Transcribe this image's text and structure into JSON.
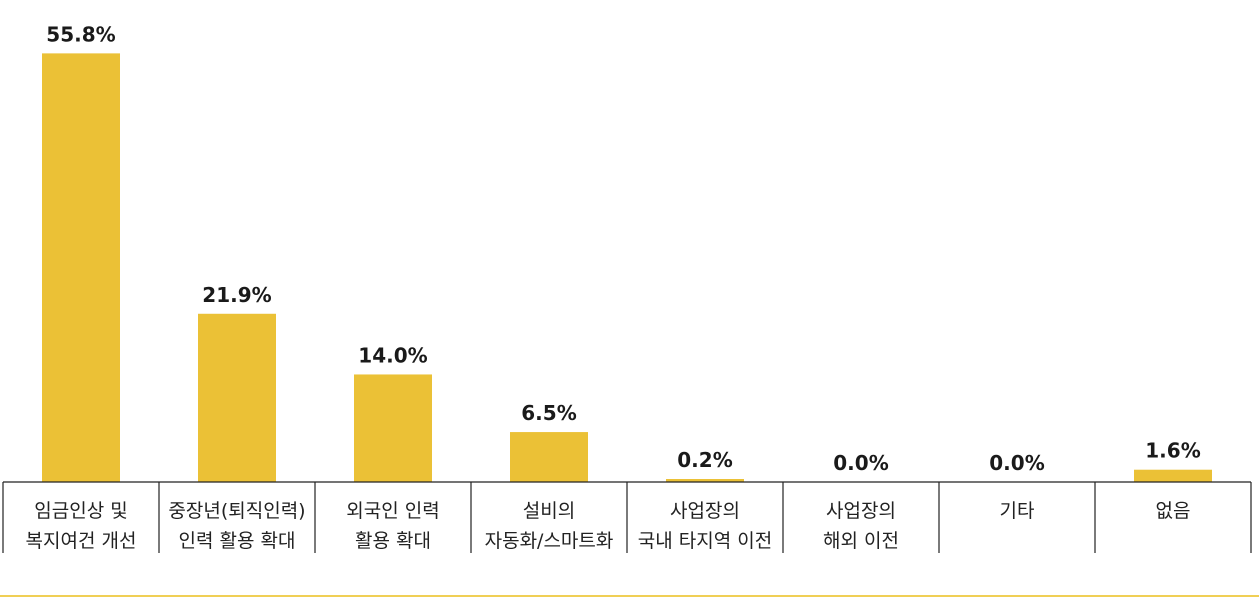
{
  "colors": {
    "bar": "#EBC136",
    "footer_line": "#F0CF55",
    "axis": "#222222"
  },
  "chart_data": {
    "type": "bar",
    "categories": [
      [
        "임금인상 및",
        "복지여건 개선"
      ],
      [
        "중장년(퇴직인력)",
        "인력 활용 확대"
      ],
      [
        "외국인 인력",
        "활용 확대"
      ],
      [
        "설비의",
        "자동화/스마트화"
      ],
      [
        "사업장의",
        "국내 타지역 이전"
      ],
      [
        "사업장의",
        "해외 이전"
      ],
      [
        "기타"
      ],
      [
        "없음"
      ]
    ],
    "values": [
      55.8,
      21.9,
      14.0,
      6.5,
      0.2,
      0.0,
      0.0,
      1.6
    ],
    "value_labels": [
      "55.8%",
      "21.9%",
      "14.0%",
      "6.5%",
      "0.2%",
      "0.0%",
      "0.0%",
      "1.6%"
    ],
    "ylim": [
      0,
      56.5
    ],
    "title": "",
    "xlabel": "",
    "ylabel": "",
    "grid": false,
    "legend": "none"
  }
}
